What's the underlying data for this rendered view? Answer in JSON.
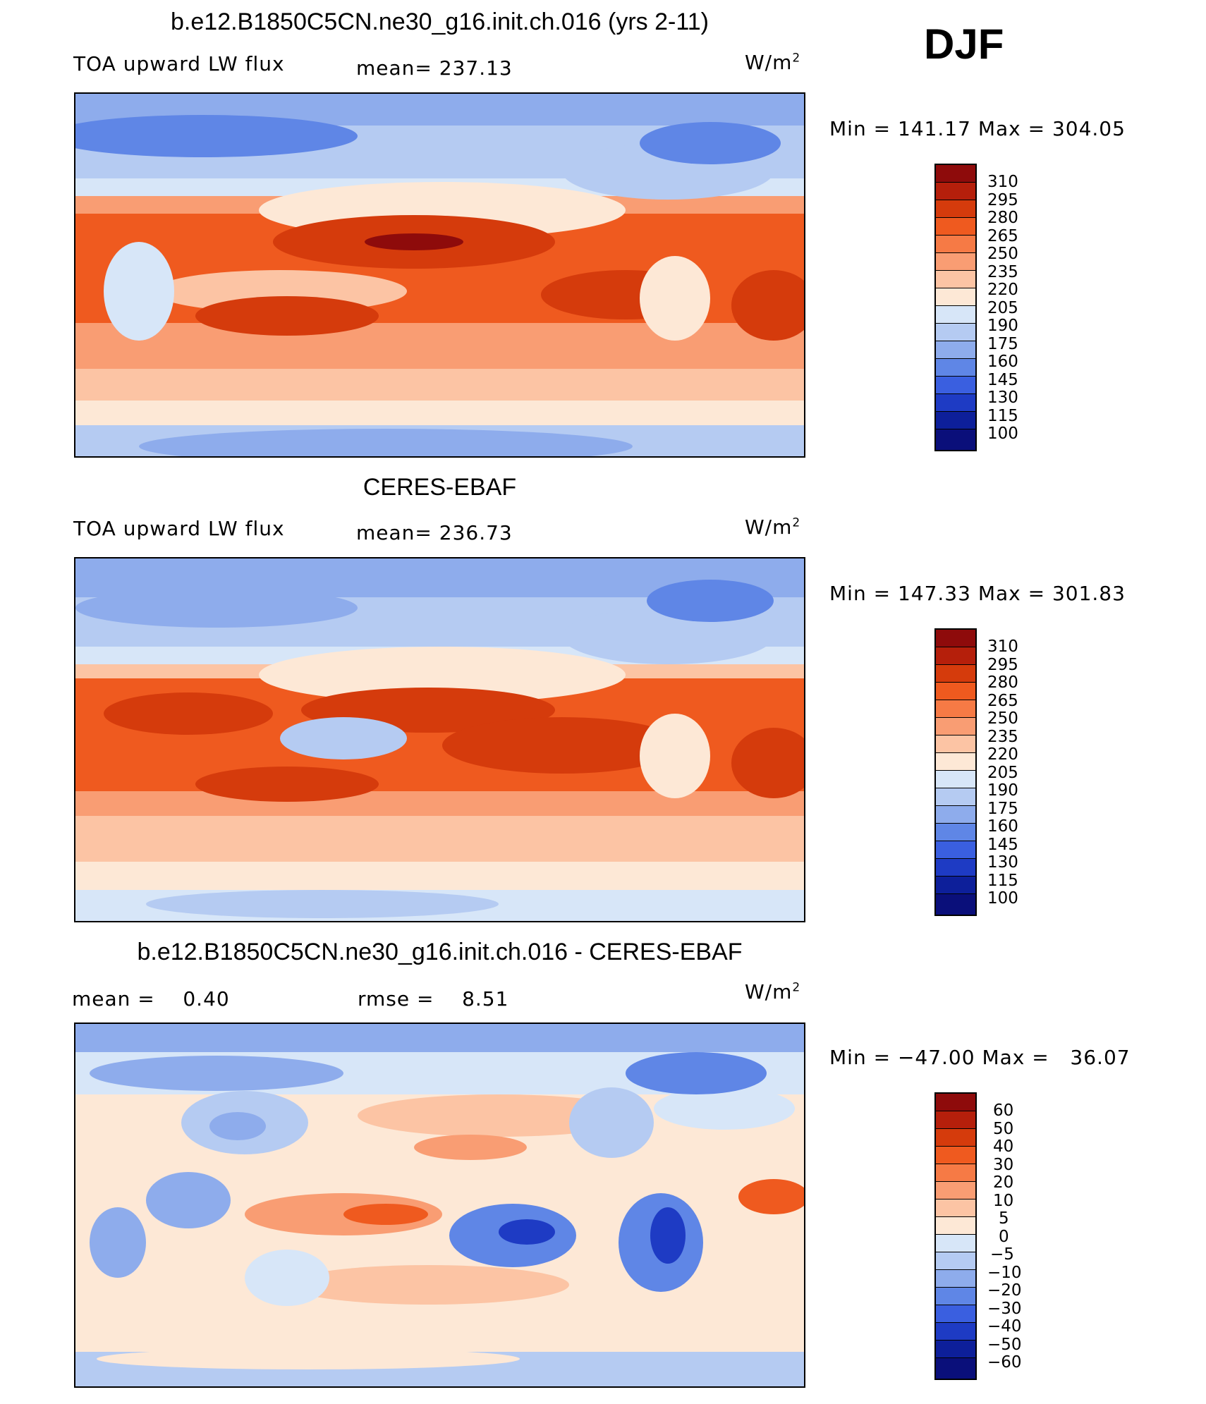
{
  "season": "DJF",
  "panels": [
    {
      "title": "b.e12.B1850C5CN.ne30_g16.init.ch.016 (yrs 2-11)",
      "variable": "TOA upward LW flux",
      "stat1": "mean= 237.13",
      "stat2": "",
      "units_base": "W/m",
      "units_exp": "2",
      "minmax": "Min = 141.17 Max = 304.05",
      "colorbar": {
        "labels": [
          "310",
          "295",
          "280",
          "265",
          "250",
          "235",
          "220",
          "205",
          "190",
          "175",
          "160",
          "145",
          "130",
          "115",
          "100"
        ],
        "colors": [
          "#8e0b0b",
          "#b51f0b",
          "#d53b0c",
          "#ef5a1f",
          "#f67a45",
          "#f99d73",
          "#fcc4a4",
          "#fde8d6",
          "#d7e6f8",
          "#b5cbf2",
          "#8eacec",
          "#5f86e6",
          "#3a5fe0",
          "#1e3bc4",
          "#0d1f9a",
          "#0a0f7a"
        ]
      },
      "chart_data": {
        "type": "heatmap",
        "title": "b.e12.B1850C5CN.ne30_g16.init.ch.016 (yrs 2-11)",
        "label": "TOA upward LW flux",
        "units": "W/m2",
        "mean": 237.13,
        "min": 141.17,
        "max": 304.05,
        "contour_levels": [
          100,
          115,
          130,
          145,
          160,
          175,
          190,
          205,
          220,
          235,
          250,
          265,
          280,
          295,
          310
        ]
      }
    },
    {
      "title": "CERES-EBAF",
      "variable": "TOA upward LW flux",
      "stat1": "mean= 236.73",
      "stat2": "",
      "units_base": "W/m",
      "units_exp": "2",
      "minmax": "Min = 147.33 Max = 301.83",
      "colorbar": {
        "labels": [
          "310",
          "295",
          "280",
          "265",
          "250",
          "235",
          "220",
          "205",
          "190",
          "175",
          "160",
          "145",
          "130",
          "115",
          "100"
        ],
        "colors": [
          "#8e0b0b",
          "#b51f0b",
          "#d53b0c",
          "#ef5a1f",
          "#f67a45",
          "#f99d73",
          "#fcc4a4",
          "#fde8d6",
          "#d7e6f8",
          "#b5cbf2",
          "#8eacec",
          "#5f86e6",
          "#3a5fe0",
          "#1e3bc4",
          "#0d1f9a",
          "#0a0f7a"
        ]
      },
      "chart_data": {
        "type": "heatmap",
        "title": "CERES-EBAF",
        "label": "TOA upward LW flux",
        "units": "W/m2",
        "mean": 236.73,
        "min": 147.33,
        "max": 301.83,
        "contour_levels": [
          100,
          115,
          130,
          145,
          160,
          175,
          190,
          205,
          220,
          235,
          250,
          265,
          280,
          295,
          310
        ]
      }
    },
    {
      "title": "b.e12.B1850C5CN.ne30_g16.init.ch.016 - CERES-EBAF",
      "variable": "mean =    0.40",
      "stat1": "rmse =    8.51",
      "stat2": "",
      "units_base": "W/m",
      "units_exp": "2",
      "minmax": "Min = −47.00 Max =   36.07",
      "colorbar": {
        "labels": [
          "60",
          "50",
          "40",
          "30",
          "20",
          "10",
          "5",
          "0",
          "−5",
          "−10",
          "−20",
          "−30",
          "−40",
          "−50",
          "−60"
        ],
        "colors": [
          "#8e0b0b",
          "#b51f0b",
          "#d53b0c",
          "#ef5a1f",
          "#f67a45",
          "#f99d73",
          "#fcc4a4",
          "#fde8d6",
          "#d7e6f8",
          "#b5cbf2",
          "#8eacec",
          "#5f86e6",
          "#3a5fe0",
          "#1e3bc4",
          "#0d1f9a",
          "#0a0f7a"
        ]
      },
      "chart_data": {
        "type": "heatmap",
        "title": "b.e12.B1850C5CN.ne30_g16.init.ch.016 - CERES-EBAF",
        "units": "W/m2",
        "mean": 0.4,
        "rmse": 8.51,
        "min": -47.0,
        "max": 36.07,
        "contour_levels": [
          -60,
          -50,
          -40,
          -30,
          -20,
          -10,
          -5,
          0,
          5,
          10,
          20,
          30,
          40,
          50,
          60
        ]
      }
    }
  ]
}
